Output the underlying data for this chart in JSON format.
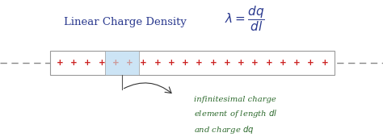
{
  "bg_color": "#ffffff",
  "title_text": "Linear Charge Density",
  "title_color": "#2b3a8f",
  "formula": "$\\lambda=\\dfrac{dq}{dl}$",
  "formula_color": "#2b3a8f",
  "dashed_color": "#888888",
  "bar_facecolor": "#ffffff",
  "bar_edgecolor": "#999999",
  "highlight_color": "#cce4f5",
  "plus_color_normal": "#cc2222",
  "plus_color_highlight": "#cc9999",
  "annotation_color": "#2d6a2d",
  "annotation_text": "infinitesimal charge\nelement of length $dl$\nand charge $dq$"
}
